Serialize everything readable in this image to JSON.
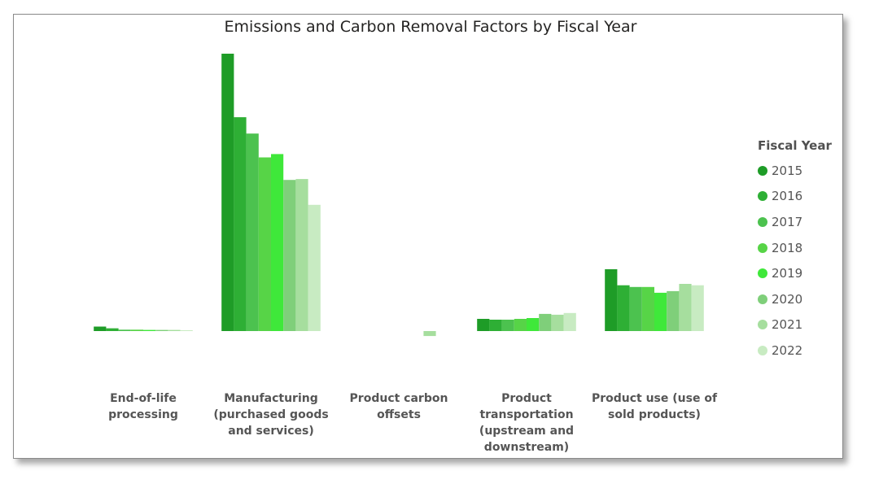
{
  "chart_data": {
    "type": "bar",
    "title": "Emissions and Carbon Removal Factors by Fiscal Year",
    "xlabel": "",
    "ylabel": "",
    "legend_title": "Fiscal Year",
    "legend_position": "right",
    "grid": false,
    "ylim": [
      -8,
      100
    ],
    "categories": [
      "End-of-life processing",
      "Manufacturing (purchased goods and services)",
      "Product carbon offsets",
      "Product transportation (upstream and downstream)",
      "Product use (use of sold products)"
    ],
    "category_label_lines": [
      [
        "End-of-life",
        "processing"
      ],
      [
        "Manufacturing",
        "(purchased goods",
        "and services)"
      ],
      [
        "Product carbon",
        "offsets"
      ],
      [
        "Product",
        "transportation",
        "(upstream and",
        "downstream)"
      ],
      [
        "Product use (use of",
        "sold products)"
      ]
    ],
    "series": [
      {
        "name": "2015",
        "color": "#1e9c27",
        "values": [
          1.6,
          100.0,
          null,
          4.4,
          22.3
        ]
      },
      {
        "name": "2016",
        "color": "#2eaf35",
        "values": [
          1.0,
          77.1,
          null,
          4.1,
          16.5
        ]
      },
      {
        "name": "2017",
        "color": "#4cc24f",
        "values": [
          0.5,
          71.2,
          null,
          4.1,
          15.9
        ]
      },
      {
        "name": "2018",
        "color": "#57d447",
        "values": [
          0.5,
          62.6,
          null,
          4.4,
          15.9
        ]
      },
      {
        "name": "2019",
        "color": "#3fe83a",
        "values": [
          0.4,
          63.8,
          null,
          4.7,
          13.8
        ]
      },
      {
        "name": "2020",
        "color": "#7fcf7a",
        "values": [
          0.4,
          54.5,
          null,
          6.2,
          14.4
        ]
      },
      {
        "name": "2021",
        "color": "#a6de9e",
        "values": [
          0.4,
          54.8,
          -1.8,
          5.9,
          17.0
        ]
      },
      {
        "name": "2022",
        "color": "#c8ebc2",
        "values": [
          0.3,
          45.5,
          null,
          6.5,
          16.5
        ]
      }
    ]
  }
}
